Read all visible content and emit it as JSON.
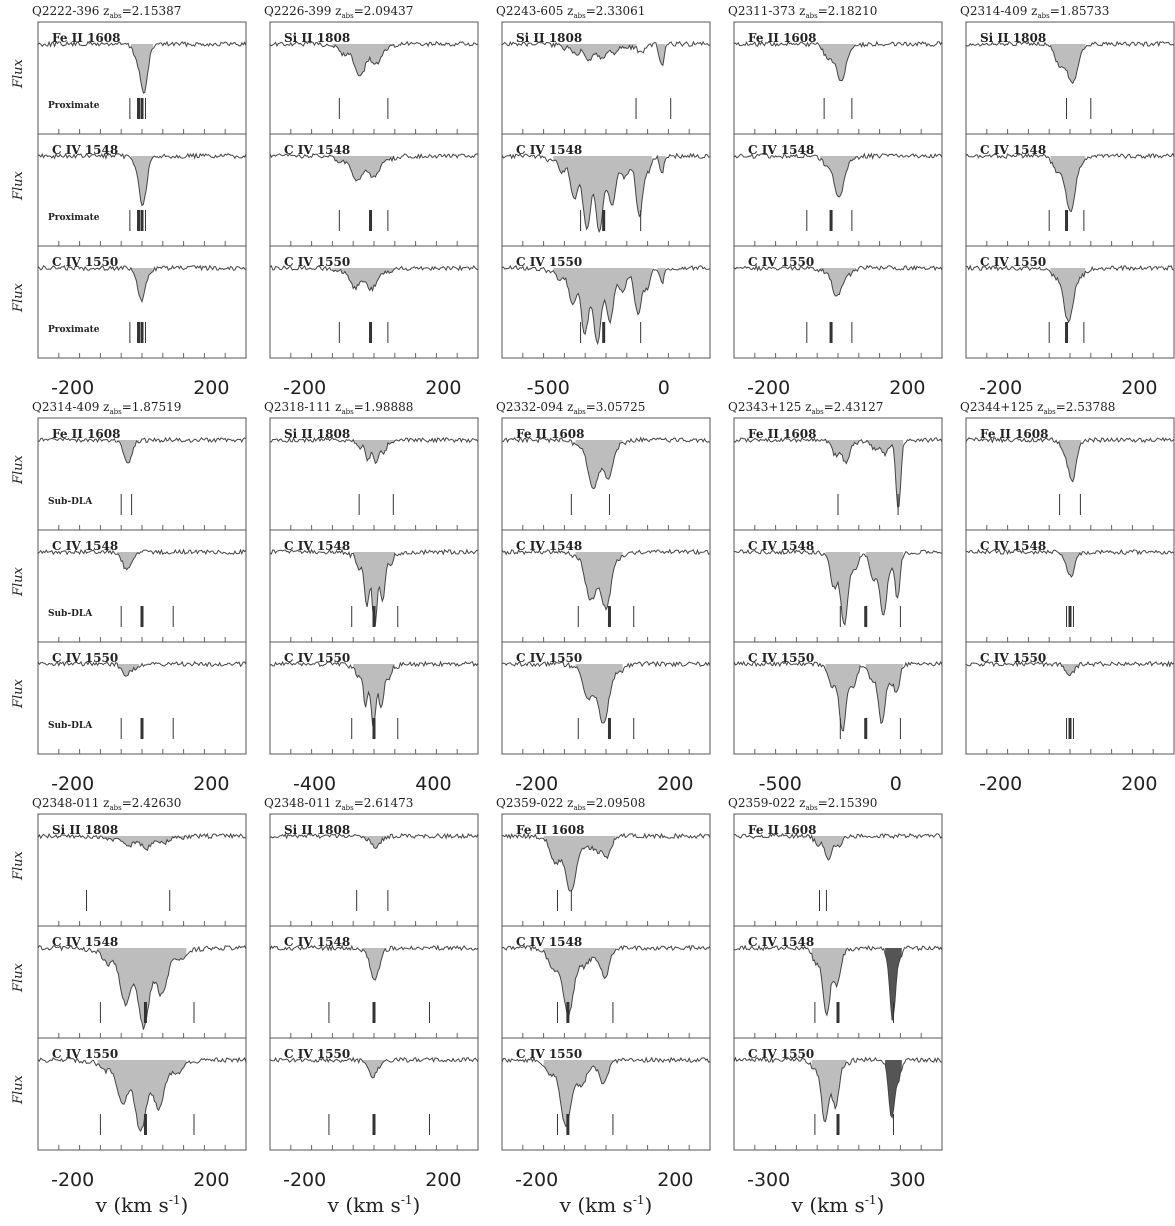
{
  "chart_data": {
    "type": "line",
    "ylabel": "Flux",
    "xlabel": "v (km s",
    "xlabel_sup": "-1",
    "xlabel_close": ")",
    "systems": [
      {
        "title": "Q2222-396 z",
        "zsub": "abs",
        "zval": "=2.15387",
        "ions": [
          "Fe II 1608",
          "C IV 1548",
          "C IV 1550"
        ],
        "note": "Proximate",
        "xlim": [
          -300,
          300
        ],
        "ticks": [
          "-200",
          "200"
        ],
        "tickvals": [
          -200,
          200
        ],
        "marks": [
          [
            -35,
            -10,
            0,
            10
          ]
        ],
        "feat": [
          {
            "c": 0,
            "w": 25,
            "d": [
              0.7,
              0.6,
              0.4
            ]
          }
        ]
      },
      {
        "title": "Q2226-399 z",
        "zsub": "abs",
        "zval": "=2.09437",
        "ions": [
          "Si II 1808",
          "C IV 1548",
          "C IV 1550"
        ],
        "note": "",
        "xlim": [
          -300,
          300
        ],
        "ticks": [
          "-200",
          "200"
        ],
        "tickvals": [
          -200,
          200
        ],
        "marks": [
          [
            -100,
            40
          ],
          [
            -100,
            -10,
            40
          ]
        ],
        "feat": [
          {
            "c": -30,
            "w": 70,
            "d": [
              0.4,
              0.35,
              0.3
            ]
          }
        ]
      },
      {
        "title": "Q2243-605 z",
        "zsub": "abs",
        "zval": "=2.33061",
        "ions": [
          "Si II 1808",
          "C IV 1548",
          "C IV 1550"
        ],
        "note": "",
        "xlim": [
          -700,
          200
        ],
        "ticks": [
          "-500",
          "0"
        ],
        "tickvals": [
          -500,
          0
        ],
        "marks": [
          [
            -120,
            30
          ],
          [
            -360,
            -260,
            -100
          ]
        ],
        "feat": [
          {
            "c": -300,
            "w": 140,
            "d": [
              0.2,
              0.95,
              0.9
            ]
          },
          {
            "c": -100,
            "w": 40,
            "d": [
              0.1,
              0.7,
              0.6
            ]
          },
          {
            "c": -10,
            "w": 15,
            "d": [
              0.5,
              0.3,
              0.2
            ]
          }
        ]
      },
      {
        "title": "Q2311-373 z",
        "zsub": "abs",
        "zval": "=2.18210",
        "ions": [
          "Fe II 1608",
          "C IV 1548",
          "C IV 1550"
        ],
        "note": "",
        "xlim": [
          -300,
          300
        ],
        "ticks": [
          "-200",
          "200"
        ],
        "tickvals": [
          -200,
          200
        ],
        "marks": [
          [
            -40,
            40
          ],
          [
            -90,
            -20,
            40
          ]
        ],
        "feat": [
          {
            "c": 0,
            "w": 40,
            "d": [
              0.5,
              0.5,
              0.35
            ]
          }
        ]
      },
      {
        "title": "Q2314-409 z",
        "zsub": "abs",
        "zval": "=1.85733",
        "ions": [
          "Si II 1808",
          "C IV 1548",
          "C IV 1550"
        ],
        "note": "",
        "xlim": [
          -300,
          300
        ],
        "ticks": [
          "-200",
          "200"
        ],
        "tickvals": [
          -200,
          200
        ],
        "marks": [
          [
            -10,
            60
          ],
          [
            -60,
            -10,
            40
          ]
        ],
        "feat": [
          {
            "c": -5,
            "w": 40,
            "d": [
              0.6,
              0.7,
              0.65
            ]
          }
        ]
      },
      {
        "title": "Q2314-409 z",
        "zsub": "abs",
        "zval": "=1.87519",
        "ions": [
          "Fe II 1608",
          "C IV 1548",
          "C IV 1550"
        ],
        "note": "Sub-DLA",
        "xlim": [
          -300,
          300
        ],
        "ticks": [
          "-200",
          "200"
        ],
        "tickvals": [
          -200,
          200
        ],
        "marks": [
          [
            -60,
            -30
          ],
          [
            -60,
            0,
            90
          ]
        ],
        "feat": [
          {
            "c": -40,
            "w": 25,
            "d": [
              0.3,
              0.25,
              0.2
            ]
          }
        ]
      },
      {
        "title": "Q2318-111 z",
        "zsub": "abs",
        "zval": "=1.98888",
        "ions": [
          "Si II 1808",
          "C IV 1548",
          "C IV 1550"
        ],
        "note": "",
        "xlim": [
          -700,
          700
        ],
        "ticks": [
          "-400",
          "400"
        ],
        "tickvals": [
          -400,
          400
        ],
        "marks": [
          [
            -100,
            130
          ],
          [
            -150,
            0,
            160
          ]
        ],
        "feat": [
          {
            "c": 0,
            "w": 110,
            "d": [
              0.3,
              0.9,
              0.75
            ]
          }
        ]
      },
      {
        "title": "Q2332-094 z",
        "zsub": "abs",
        "zval": "=3.05725",
        "ions": [
          "Fe II 1608",
          "C IV 1548",
          "C IV 1550"
        ],
        "note": "",
        "xlim": [
          -300,
          300
        ],
        "ticks": [
          "-200",
          "200"
        ],
        "tickvals": [
          -200,
          200
        ],
        "marks": [
          [
            -100,
            10
          ],
          [
            -80,
            10,
            80
          ]
        ],
        "feat": [
          {
            "c": -20,
            "w": 55,
            "d": [
              0.7,
              0.85,
              0.8
            ]
          }
        ]
      },
      {
        "title": "Q2343+125 z",
        "zsub": "abs",
        "zval": "=2.43127",
        "ions": [
          "Fe II 1608",
          "C IV 1548",
          "C IV 1550"
        ],
        "note": "",
        "xlim": [
          -700,
          200
        ],
        "ticks": [
          "-500",
          "0"
        ],
        "tickvals": [
          -500,
          0
        ],
        "marks": [
          [
            -250,
            10
          ],
          [
            -240,
            -130,
            20
          ]
        ],
        "feat": [
          {
            "c": -230,
            "w": 60,
            "d": [
              0.3,
              0.9,
              0.8
            ]
          },
          {
            "c": -60,
            "w": 55,
            "d": [
              0.2,
              0.8,
              0.7
            ]
          },
          {
            "c": 10,
            "w": 20,
            "d": [
              0.85,
              0.5,
              0.35
            ]
          }
        ]
      },
      {
        "title": "Q2344+125 z",
        "zsub": "abs",
        "zval": "=2.53788",
        "ions": [
          "Fe II 1608",
          "C IV 1548",
          "C IV 1550"
        ],
        "note": "",
        "xlim": [
          -300,
          300
        ],
        "ticks": [
          "-200",
          "200"
        ],
        "tickvals": [
          -200,
          200
        ],
        "marks": [
          [
            -30,
            30
          ],
          [
            -10,
            0,
            10
          ]
        ],
        "feat": [
          {
            "c": 0,
            "w": 25,
            "d": [
              0.6,
              0.3,
              0.15
            ]
          }
        ]
      },
      {
        "title": "Q2348-011 z",
        "zsub": "abs",
        "zval": "=2.42630",
        "ions": [
          "Si II 1808",
          "C IV 1548",
          "C IV 1550"
        ],
        "note": "",
        "xlim": [
          -300,
          300
        ],
        "ticks": [
          "-200",
          "200"
        ],
        "tickvals": [
          -200,
          200
        ],
        "marks": [
          [
            -160,
            80
          ],
          [
            -120,
            10,
            150
          ]
        ],
        "feat": [
          {
            "c": 0,
            "w": 100,
            "d": [
              0.15,
              0.95,
              0.85
            ]
          }
        ]
      },
      {
        "title": "Q2348-011 z",
        "zsub": "abs",
        "zval": "=2.61473",
        "ions": [
          "Si II 1808",
          "C IV 1548",
          "C IV 1550"
        ],
        "note": "",
        "xlim": [
          -300,
          300
        ],
        "ticks": [
          "-200",
          "200"
        ],
        "tickvals": [
          -200,
          200
        ],
        "marks": [
          [
            -50,
            40
          ],
          [
            -130,
            0,
            160
          ]
        ],
        "feat": [
          {
            "c": 0,
            "w": 30,
            "d": [
              0.15,
              0.4,
              0.2
            ]
          }
        ]
      },
      {
        "title": "Q2359-022 z",
        "zsub": "abs",
        "zval": "=2.09508",
        "ions": [
          "Fe II 1608",
          "C IV 1548",
          "C IV 1550"
        ],
        "note": "",
        "xlim": [
          -300,
          300
        ],
        "ticks": [
          "-200",
          "200"
        ],
        "tickvals": [
          -200,
          200
        ],
        "marks": [
          [
            -140,
            -100
          ],
          [
            -140,
            -110,
            20
          ]
        ],
        "feat": [
          {
            "c": -110,
            "w": 55,
            "d": [
              0.7,
              0.8,
              0.8
            ]
          },
          {
            "c": -10,
            "w": 30,
            "d": [
              0.4,
              0.4,
              0.3
            ]
          }
        ]
      },
      {
        "title": "Q2359-022 z",
        "zsub": "abs",
        "zval": "=2.15390",
        "ions": [
          "Fe II 1608",
          "C IV 1548",
          "C IV 1550"
        ],
        "note": "",
        "xlim": [
          -450,
          450
        ],
        "ticks": [
          "-300",
          "300"
        ],
        "tickvals": [
          -300,
          300
        ],
        "marks": [
          [
            -80,
            -50
          ],
          [
            -100,
            0,
            240
          ]
        ],
        "feat": [
          {
            "c": -40,
            "w": 60,
            "d": [
              0.3,
              0.85,
              0.85
            ]
          },
          {
            "c": 240,
            "w": 30,
            "d": [
              0,
              0.9,
              0.9
            ],
            "dark": true
          }
        ]
      }
    ]
  }
}
